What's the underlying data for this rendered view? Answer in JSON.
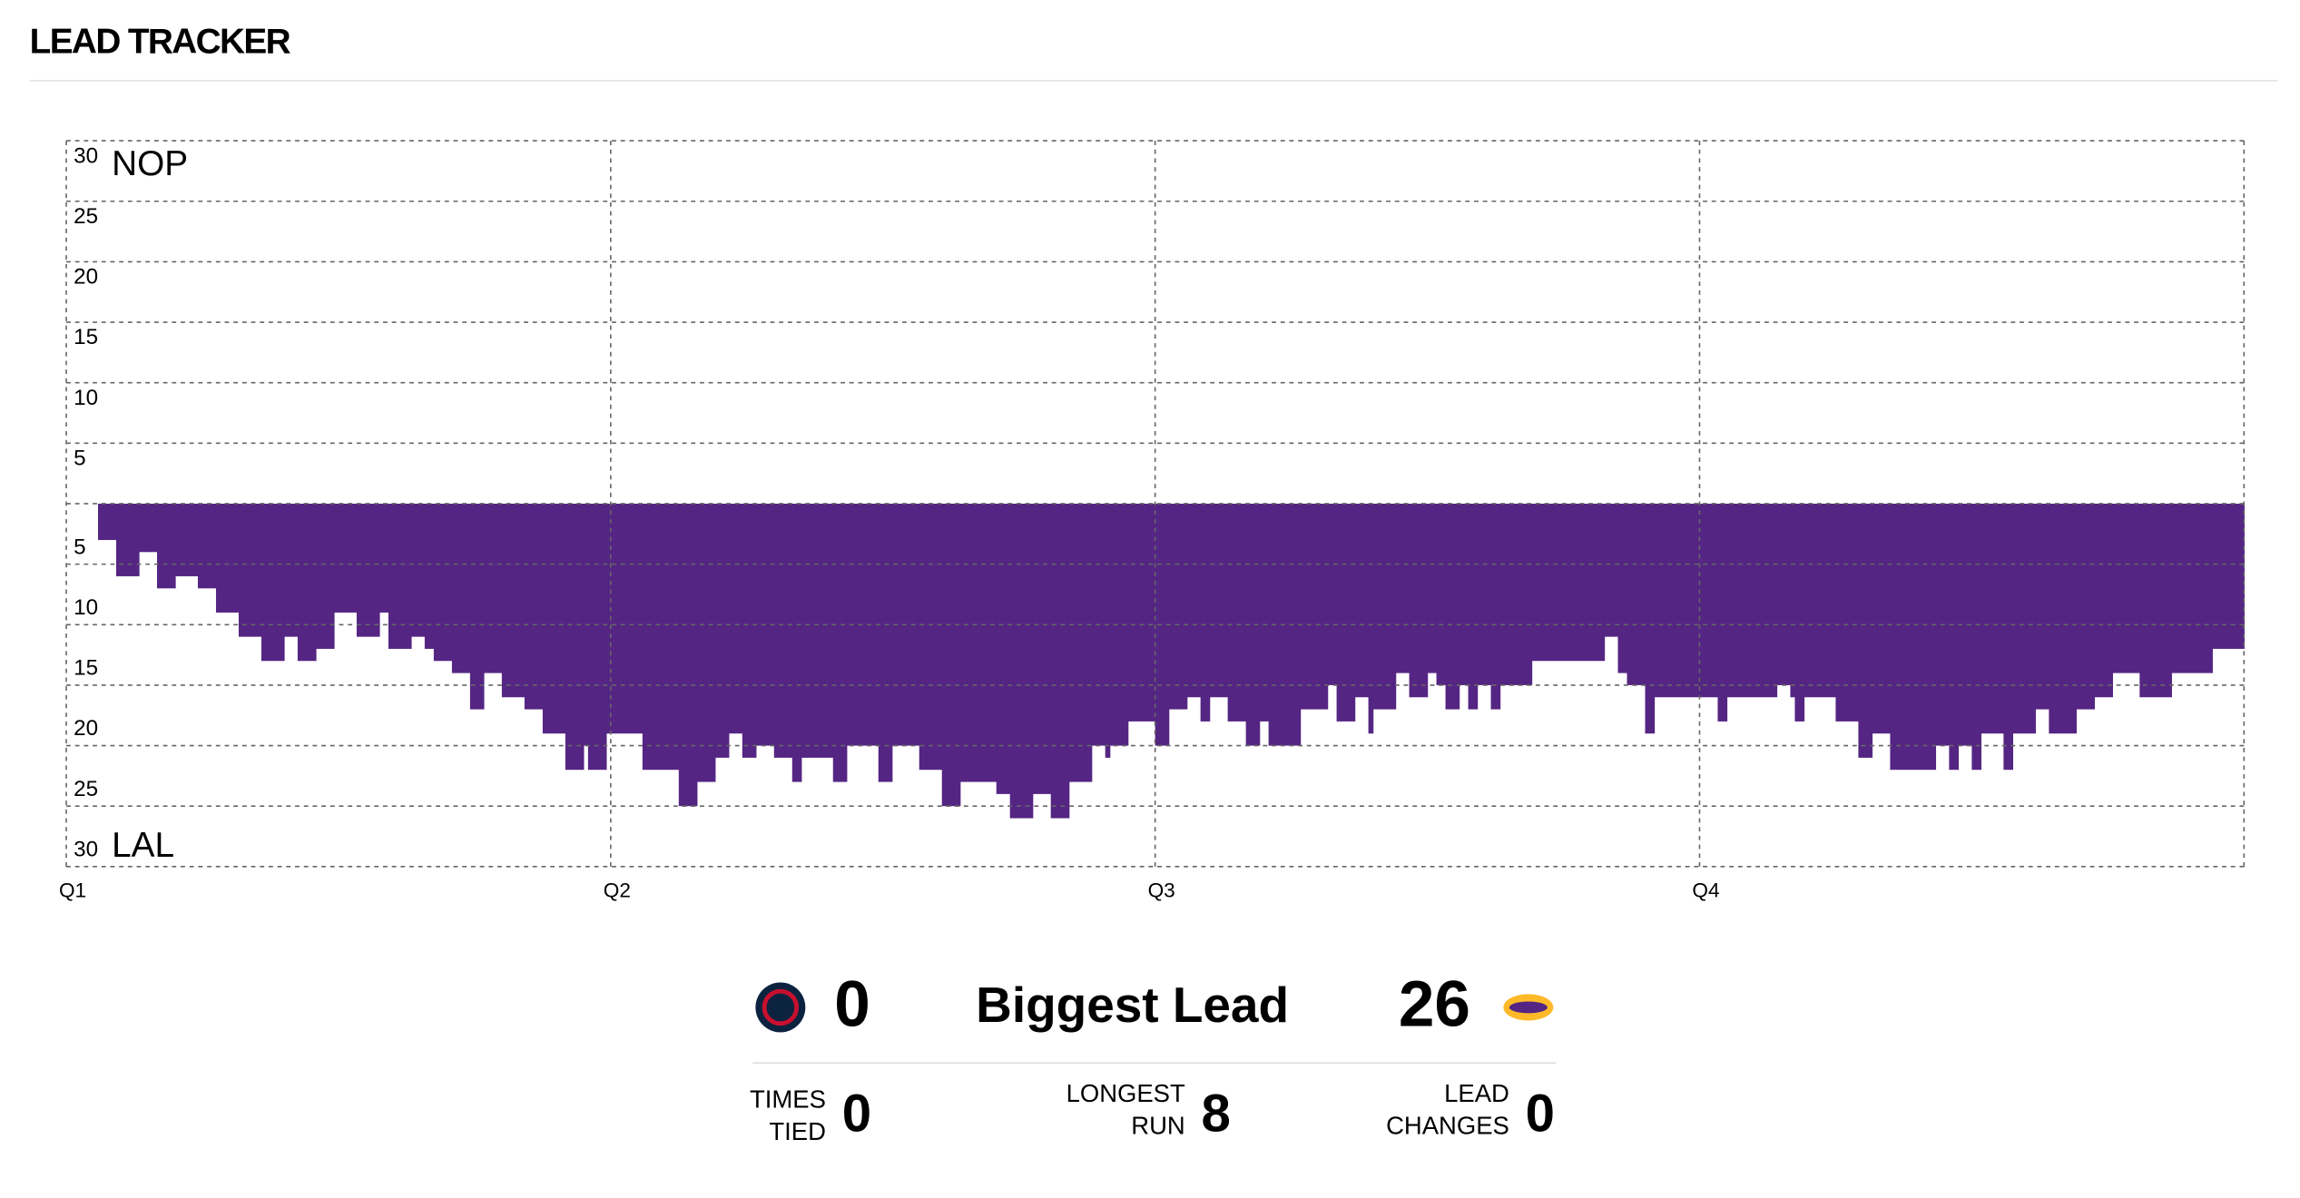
{
  "header": {
    "title": "LEAD TRACKER"
  },
  "chart_data": {
    "type": "step-area",
    "teams": {
      "top": "NOP",
      "bottom": "LAL"
    },
    "x": [
      0,
      0.7,
      1.1,
      1.6,
      2.0,
      2.4,
      2.9,
      3.3,
      3.8,
      4.3,
      4.8,
      5.1,
      5.5,
      5.9,
      6.4,
      6.9,
      7.1,
      7.6,
      7.9,
      8.1,
      8.5,
      8.9,
      9.2,
      9.6,
      10.1,
      10.5,
      11.0,
      11.4,
      11.5,
      11.9,
      12.7,
      13.5,
      13.9,
      14.3,
      14.6,
      14.9,
      15.2,
      15.6,
      16.0,
      16.2,
      16.9,
      17.2,
      17.9,
      18.2,
      18.8,
      19.3,
      19.7,
      20.5,
      20.8,
      21.3,
      21.7,
      22.1,
      22.6,
      22.9,
      23.0,
      23.4,
      24.0,
      24.3,
      24.7,
      25.0,
      25.2,
      25.6,
      26.0,
      26.3,
      26.5,
      27.2,
      27.8,
      28.0,
      28.4,
      28.7,
      28.8,
      29.3,
      29.6,
      30.0,
      30.2,
      30.4,
      30.7,
      30.9,
      31.1,
      31.4,
      31.6,
      32.3,
      33.9,
      34.2,
      34.4,
      34.8,
      35.0,
      36.4,
      36.6,
      37.7,
      38.0,
      38.1,
      38.3,
      39.0,
      39.5,
      39.8,
      40.2,
      41.2,
      41.5,
      41.7,
      42.0,
      42.2,
      42.7,
      42.9,
      43.4,
      43.7,
      44.3,
      44.7,
      45.1,
      45.7,
      46.4,
      47.3
    ],
    "values": [
      0,
      -3,
      -6,
      -4,
      -7,
      -6,
      -7,
      -9,
      -11,
      -13,
      -11,
      -13,
      -12,
      -9,
      -11,
      -9,
      -12,
      -11,
      -12,
      -13,
      -14,
      -17,
      -14,
      -16,
      -17,
      -19,
      -22,
      -20,
      -22,
      -19,
      -22,
      -25,
      -23,
      -21,
      -19,
      -21,
      -20,
      -21,
      -23,
      -21,
      -23,
      -20,
      -23,
      -20,
      -22,
      -25,
      -23,
      -24,
      -26,
      -24,
      -26,
      -23,
      -20,
      -21,
      -20,
      -18,
      -20,
      -17,
      -16,
      -18,
      -16,
      -18,
      -20,
      -18,
      -20,
      -17,
      -15,
      -18,
      -16,
      -19,
      -17,
      -14,
      -16,
      -14,
      -15,
      -17,
      -15,
      -17,
      -15,
      -17,
      -15,
      -13,
      -11,
      -14,
      -15,
      -19,
      -16,
      -18,
      -16,
      -15,
      -16,
      -18,
      -16,
      -18,
      -21,
      -19,
      -22,
      -20,
      -22,
      -20,
      -22,
      -19,
      -22,
      -19,
      -17,
      -19,
      -17,
      -16,
      -14,
      -16,
      -14,
      -12
    ],
    "color": "#552583",
    "xlim": [
      0,
      48
    ],
    "xticks": [
      {
        "value": 0,
        "label": "Q1"
      },
      {
        "value": 12,
        "label": "Q2"
      },
      {
        "value": 24,
        "label": "Q3"
      },
      {
        "value": 36,
        "label": "Q4"
      }
    ],
    "ylim": [
      -30,
      30
    ],
    "yticks": [
      30,
      25,
      20,
      15,
      10,
      5,
      {
        "value": -5,
        "label": "5"
      },
      {
        "value": -10,
        "label": "10"
      },
      {
        "value": -15,
        "label": "15"
      },
      {
        "value": -20,
        "label": "20"
      },
      {
        "value": -25,
        "label": "25"
      },
      {
        "value": -30,
        "label": "30"
      }
    ],
    "grid": true
  },
  "summary": {
    "home_lead": "0",
    "title": "Biggest Lead",
    "away_lead": "26",
    "stats": [
      {
        "label": [
          "TIMES",
          "TIED"
        ],
        "value": "0"
      },
      {
        "label": [
          "LONGEST",
          "RUN"
        ],
        "value": "8"
      },
      {
        "label": [
          "LEAD",
          "CHANGES"
        ],
        "value": "0"
      }
    ]
  }
}
